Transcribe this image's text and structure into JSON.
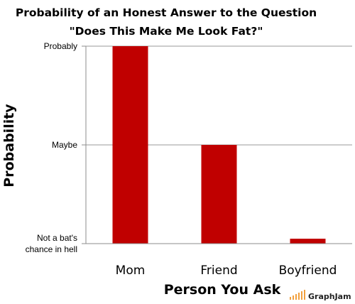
{
  "chart_data": {
    "type": "bar",
    "title": [
      "Probability of an Honest Answer to the Question",
      "\"Does This Make Me Look Fat?\""
    ],
    "xlabel": "Person You Ask",
    "ylabel": "Probability",
    "categories": [
      "Mom",
      "Friend",
      "Boyfriend"
    ],
    "values": [
      1.0,
      0.5,
      0.025
    ],
    "ylim": [
      0,
      1
    ],
    "yticks": [
      {
        "value": 1.0,
        "label": [
          "Probably"
        ]
      },
      {
        "value": 0.5,
        "label": [
          "Maybe"
        ]
      },
      {
        "value": 0.0,
        "label": [
          "Not a bat's",
          "chance in hell"
        ]
      }
    ],
    "grid": true,
    "bar_color": "#C00000"
  },
  "watermark": {
    "text": "GraphJam",
    "icon": "signal-bars-icon",
    "color": "#F2A03D"
  }
}
